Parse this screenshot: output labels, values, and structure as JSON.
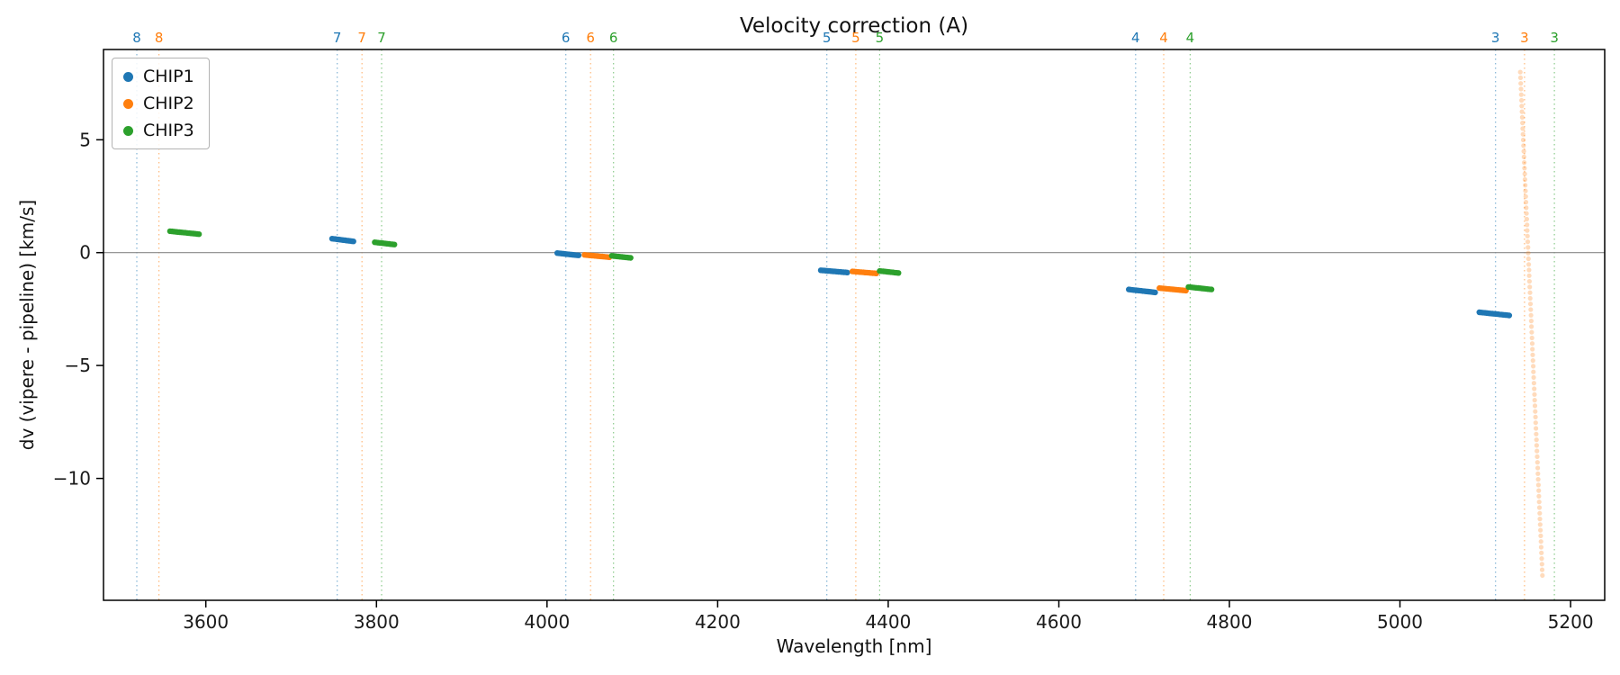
{
  "chart_data": {
    "type": "scatter",
    "title": "Velocity correction (A)",
    "xlabel": "Wavelength [nm]",
    "ylabel": "dv (vipere - pipeline) [km/s]",
    "xlim": [
      3480,
      5240
    ],
    "ylim": [
      -15.4,
      9.0
    ],
    "grid": false,
    "xticks": [
      3600,
      3800,
      4000,
      4200,
      4400,
      4600,
      4800,
      5000,
      5200
    ],
    "yticks": {
      "values": [
        5,
        0,
        -5,
        -10
      ],
      "labels": [
        "5",
        "0",
        "−5",
        "−10"
      ]
    },
    "zero_line": {
      "y": 0,
      "color": "#888888"
    },
    "series_colors": {
      "CHIP1": "#1f77b4",
      "CHIP2": "#ff7f0e",
      "CHIP3": "#2ca02c"
    },
    "legend": {
      "position": "upper-left",
      "entries": [
        {
          "label": "CHIP1",
          "color": "#1f77b4"
        },
        {
          "label": "CHIP2",
          "color": "#ff7f0e"
        },
        {
          "label": "CHIP3",
          "color": "#2ca02c"
        }
      ]
    },
    "order_lines": [
      {
        "chip": "CHIP1",
        "color": "#1f77b4",
        "lines": [
          {
            "order": "8",
            "x": 3519
          },
          {
            "order": "7",
            "x": 3754
          },
          {
            "order": "6",
            "x": 4022
          },
          {
            "order": "5",
            "x": 4328
          },
          {
            "order": "4",
            "x": 4690
          },
          {
            "order": "3",
            "x": 5112
          }
        ]
      },
      {
        "chip": "CHIP2",
        "color": "#ff7f0e",
        "lines": [
          {
            "order": "8",
            "x": 3545
          },
          {
            "order": "7",
            "x": 3783
          },
          {
            "order": "6",
            "x": 4051
          },
          {
            "order": "5",
            "x": 4362
          },
          {
            "order": "4",
            "x": 4723
          },
          {
            "order": "3",
            "x": 5146
          }
        ]
      },
      {
        "chip": "CHIP3",
        "color": "#2ca02c",
        "lines": [
          {
            "order": "7",
            "x": 3806
          },
          {
            "order": "6",
            "x": 4078
          },
          {
            "order": "5",
            "x": 4390
          },
          {
            "order": "4",
            "x": 4754
          },
          {
            "order": "3",
            "x": 5181
          }
        ]
      }
    ],
    "clusters": [
      {
        "chip": "CHIP3",
        "order": 8,
        "x": [
          3558,
          3592
        ],
        "y": [
          0.95,
          0.82
        ],
        "n": 16
      },
      {
        "chip": "CHIP1",
        "order": 7,
        "x": [
          3748,
          3773
        ],
        "y": [
          0.62,
          0.5
        ],
        "n": 14
      },
      {
        "chip": "CHIP3",
        "order": 7,
        "x": [
          3798,
          3821
        ],
        "y": [
          0.46,
          0.36
        ],
        "n": 12
      },
      {
        "chip": "CHIP1",
        "order": 6,
        "x": [
          4012,
          4037
        ],
        "y": [
          -0.02,
          -0.12
        ],
        "n": 14
      },
      {
        "chip": "CHIP2",
        "order": 6,
        "x": [
          4044,
          4073
        ],
        "y": [
          -0.1,
          -0.2
        ],
        "n": 15
      },
      {
        "chip": "CHIP3",
        "order": 6,
        "x": [
          4076,
          4098
        ],
        "y": [
          -0.14,
          -0.23
        ],
        "n": 12
      },
      {
        "chip": "CHIP1",
        "order": 5,
        "x": [
          4321,
          4352
        ],
        "y": [
          -0.78,
          -0.88
        ],
        "n": 16
      },
      {
        "chip": "CHIP2",
        "order": 5,
        "x": [
          4358,
          4386
        ],
        "y": [
          -0.83,
          -0.92
        ],
        "n": 14
      },
      {
        "chip": "CHIP3",
        "order": 5,
        "x": [
          4390,
          4412
        ],
        "y": [
          -0.81,
          -0.9
        ],
        "n": 11
      },
      {
        "chip": "CHIP1",
        "order": 4,
        "x": [
          4682,
          4713
        ],
        "y": [
          -1.63,
          -1.76
        ],
        "n": 16
      },
      {
        "chip": "CHIP2",
        "order": 4,
        "x": [
          4718,
          4749
        ],
        "y": [
          -1.57,
          -1.68
        ],
        "n": 15
      },
      {
        "chip": "CHIP3",
        "order": 4,
        "x": [
          4752,
          4779
        ],
        "y": [
          -1.52,
          -1.63
        ],
        "n": 13
      },
      {
        "chip": "CHIP1",
        "order": 3,
        "x": [
          5093,
          5128
        ],
        "y": [
          -2.64,
          -2.78
        ],
        "n": 17
      }
    ],
    "outlier_trail": {
      "chip": "CHIP2",
      "order": 3,
      "x": [
        5141,
        5167
      ],
      "y": [
        8.0,
        -14.3
      ],
      "n": 90,
      "opacity": 0.28
    }
  }
}
